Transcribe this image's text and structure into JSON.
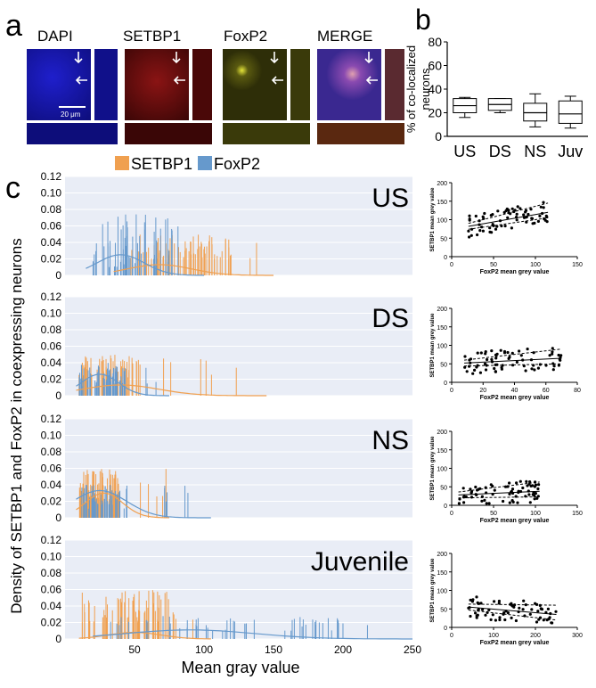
{
  "panel_labels": {
    "a": "a",
    "b": "b",
    "c": "c"
  },
  "micrograph_channels": [
    {
      "label": "DAPI",
      "color": "#1a1ad8"
    },
    {
      "label": "SETBP1",
      "color": "#b01818"
    },
    {
      "label": "FoxP2",
      "color": "#c8c818"
    },
    {
      "label": "MERGE",
      "color": "#9a50b8"
    }
  ],
  "scale_bar_label": "20 μm",
  "box_plot": {
    "ylabel_lines": [
      "% of co-localized",
      "neurons"
    ],
    "yticks": [
      "0",
      "20",
      "40",
      "60",
      "80"
    ],
    "ylim": [
      0,
      80
    ],
    "groups": [
      {
        "label": "US",
        "whisker_low": 16,
        "q1": 20,
        "median": 26,
        "q3": 32,
        "whisker_high": 33
      },
      {
        "label": "DS",
        "whisker_low": 20,
        "q1": 22,
        "median": 27,
        "q3": 32,
        "whisker_high": 32
      },
      {
        "label": "NS",
        "whisker_low": 8,
        "q1": 13,
        "median": 20,
        "q3": 28,
        "whisker_high": 36
      },
      {
        "label": "Juv",
        "whisker_low": 7,
        "q1": 11,
        "median": 19,
        "q3": 30,
        "whisker_high": 34
      }
    ]
  },
  "legend": [
    {
      "name": "SETBP1",
      "color": "#f0a050"
    },
    {
      "name": "FoxP2",
      "color": "#6699cc"
    }
  ],
  "density_ylabel": "Density of SETBP1 and FoxP2 in coexpressing neurons",
  "density_xlabel": "Mean gray value",
  "density_xticks": [
    "50",
    "100",
    "150",
    "200",
    "250"
  ],
  "density_yticks": [
    "0",
    "0.02",
    "0.04",
    "0.06",
    "0.08",
    "0.10",
    "0.12"
  ],
  "density_panels": [
    {
      "label": "US",
      "xmax": 155
    },
    {
      "label": "DS",
      "xmax": 155
    },
    {
      "label": "NS",
      "xmax": 105
    },
    {
      "label": "Juvenile",
      "xmax": 250
    }
  ],
  "scatter_xlabel": "FoxP2 mean grey value",
  "scatter_ylabel": "SETBP1 mean grey value",
  "scatter_yticks": [
    "0",
    "50",
    "100",
    "150",
    "200"
  ],
  "scatter_panels": [
    {
      "xticks": [
        "0",
        "50",
        "100",
        "150"
      ]
    },
    {
      "xticks": [
        "0",
        "20",
        "40",
        "60",
        "80"
      ]
    },
    {
      "xticks": [
        "0",
        "50",
        "100",
        "150"
      ]
    },
    {
      "xticks": [
        "0",
        "100",
        "200",
        "300"
      ]
    }
  ],
  "chart_data": [
    {
      "type": "box",
      "categories": [
        "US",
        "DS",
        "NS",
        "Juv"
      ],
      "ylabel": "% of co-localized neurons",
      "ylim": [
        0,
        80
      ]
    },
    {
      "type": "bar",
      "subtype": "rug-histogram-with-density",
      "panels": [
        "US",
        "DS",
        "NS",
        "Juvenile"
      ],
      "series": [
        {
          "name": "SETBP1"
        },
        {
          "name": "FoxP2"
        }
      ],
      "xlabel": "Mean gray value",
      "ylabel": "Density of SETBP1 and FoxP2 in coexpressing neurons",
      "xlim": [
        0,
        250
      ],
      "ylim": [
        0,
        0.12
      ],
      "density_peaks": [
        {
          "panel": "US",
          "SETBP1": {
            "peak_x": 68,
            "peak_y": 0.013
          },
          "FoxP2": {
            "peak_x": 40,
            "peak_y": 0.025
          }
        },
        {
          "panel": "DS",
          "SETBP1": {
            "peak_x": 40,
            "peak_y": 0.013
          },
          "FoxP2": {
            "peak_x": 25,
            "peak_y": 0.026
          }
        },
        {
          "panel": "NS",
          "SETBP1": {
            "peak_x": 28,
            "peak_y": 0.03
          },
          "FoxP2": {
            "peak_x": 25,
            "peak_y": 0.033
          }
        },
        {
          "panel": "Juvenile",
          "SETBP1": {
            "peak_x": 50,
            "peak_y": 0.008
          },
          "FoxP2": {
            "peak_x": 90,
            "peak_y": 0.011
          }
        }
      ]
    },
    {
      "type": "scatter",
      "panels": [
        "US",
        "DS",
        "NS",
        "Juvenile"
      ],
      "xlabel": "FoxP2 mean grey value",
      "ylabel": "SETBP1 mean grey value",
      "ylim": [
        0,
        200
      ],
      "xlims": [
        [
          0,
          150
        ],
        [
          0,
          80
        ],
        [
          0,
          150
        ],
        [
          0,
          300
        ]
      ],
      "fit_lines": [
        {
          "x": [
            20,
            115
          ],
          "y": [
            82,
            120
          ]
        },
        {
          "x": [
            8,
            70
          ],
          "y": [
            52,
            65
          ]
        },
        {
          "x": [
            8,
            105
          ],
          "y": [
            28,
            38
          ]
        },
        {
          "x": [
            40,
            250
          ],
          "y": [
            55,
            35
          ]
        }
      ]
    }
  ]
}
